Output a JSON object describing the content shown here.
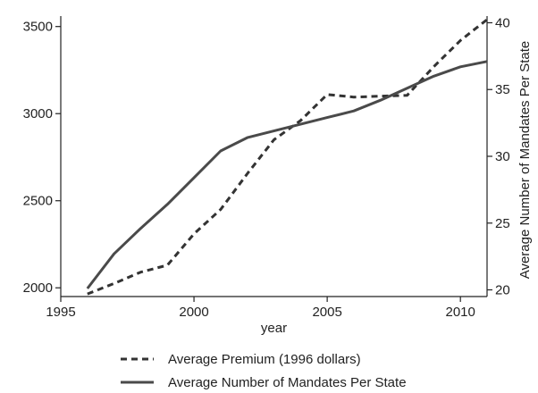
{
  "chart_data": {
    "type": "line",
    "xlabel": "year",
    "ylabel_right": "Average Number of Mandates Per State",
    "x": [
      1996,
      1997,
      1998,
      1999,
      2000,
      2001,
      2002,
      2003,
      2004,
      2005,
      2006,
      2007,
      2008,
      2009,
      2010,
      2011
    ],
    "xlim": [
      1995,
      2011
    ],
    "ylim_left": [
      1950,
      3560
    ],
    "ylim_right": [
      19.5,
      40.5
    ],
    "xticks": [
      "1995",
      "2000",
      "2005",
      "2010"
    ],
    "yticks_left": [
      "2000",
      "2500",
      "3000",
      "3500"
    ],
    "yticks_right": [
      "20",
      "25",
      "30",
      "35",
      "40"
    ],
    "grid": false,
    "legend_position": "bottom",
    "series": [
      {
        "name": "Average Premium (1996 dollars)",
        "axis": "left",
        "style": "dashed",
        "color": "#333333",
        "values": [
          1965,
          2025,
          2090,
          2130,
          2310,
          2450,
          2655,
          2850,
          2960,
          3110,
          3095,
          3100,
          3105,
          3270,
          3420,
          3540
        ]
      },
      {
        "name": "Average Number of Mandates Per State",
        "axis": "right",
        "style": "solid",
        "color": "#4a4a4a",
        "values": [
          20.1,
          22.7,
          24.6,
          26.4,
          28.4,
          30.4,
          31.4,
          31.9,
          32.4,
          32.9,
          33.4,
          34.2,
          35.1,
          36.0,
          36.7,
          37.1
        ]
      }
    ]
  }
}
